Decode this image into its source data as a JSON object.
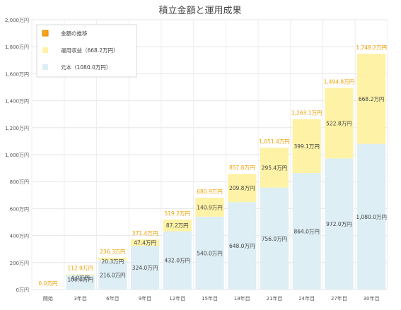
{
  "chart_data": {
    "type": "bar",
    "stacked": true,
    "title": "積立金額と運用成果",
    "categories": [
      "開始",
      "3年目",
      "6年目",
      "9年目",
      "12年目",
      "15年目",
      "18年目",
      "21年目",
      "24年目",
      "27年目",
      "30年目"
    ],
    "y_ticks": [
      "0万円",
      "200万円",
      "400万円",
      "600万円",
      "800万円",
      "1,000万円",
      "1,200万円",
      "1,400万円",
      "1,600万円",
      "1,800万円",
      "2,000万円"
    ],
    "ylim": [
      0,
      2000
    ],
    "grid": true,
    "legend_position": "top-left",
    "legend": [
      {
        "label": "金額の推移",
        "color": "#f5a31a"
      },
      {
        "label": "運用収益（668.2万円）",
        "color": "#fdf2a6"
      },
      {
        "label": "元本（1080.0万円）",
        "color": "#ddeef4"
      }
    ],
    "series": [
      {
        "name": "元本（1080.0万円）",
        "values": [
          0,
          108.0,
          216.0,
          324.0,
          432.0,
          540.0,
          648.0,
          756.0,
          864.0,
          972.0,
          1080.0
        ],
        "labels": [
          "",
          "108.0万円",
          "216.0万円",
          "324.0万円",
          "432.0万円",
          "540.0万円",
          "648.0万円",
          "756.0万円",
          "864.0万円",
          "972.0万円",
          "1,080.0万円"
        ]
      },
      {
        "name": "運用収益（668.2万円）",
        "values": [
          0,
          4.9,
          20.3,
          47.4,
          87.2,
          140.9,
          209.8,
          295.4,
          399.1,
          522.8,
          668.2
        ],
        "labels": [
          "",
          "4.9万円",
          "20.3万円",
          "47.4万円",
          "87.2万円",
          "140.9万円",
          "209.8万円",
          "295.4万円",
          "399.1万円",
          "522.8万円",
          "668.2万円"
        ]
      }
    ],
    "totals": [
      0,
      112.9,
      236.3,
      371.4,
      519.2,
      680.9,
      857.8,
      1051.4,
      1263.1,
      1494.8,
      1748.2
    ],
    "total_labels": [
      "0.0万円",
      "112.9万円",
      "236.3万円",
      "371.4万円",
      "519.2万円",
      "680.9万円",
      "857.8万円",
      "1,051.4万円",
      "1,263.1万円",
      "1,494.8万円",
      "1,748.2万円"
    ],
    "colors": {
      "principal": "#ddeef4",
      "gain": "#fdf2a6",
      "total_label": "#f0a000"
    }
  }
}
